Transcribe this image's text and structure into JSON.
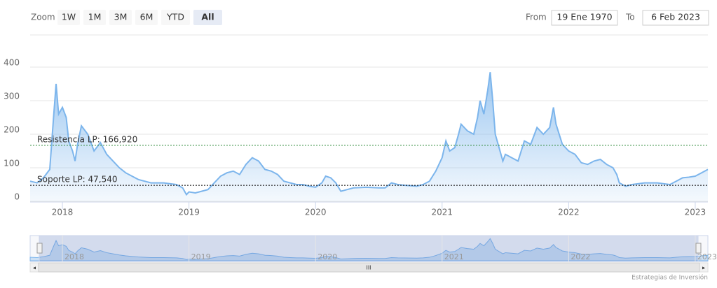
{
  "range_selector": {
    "zoom_label": "Zoom",
    "buttons": [
      "1W",
      "1M",
      "3M",
      "6M",
      "YTD",
      "All"
    ],
    "selected": 5,
    "from_label": "From",
    "from": "19 Ene 1970",
    "to_label": "To",
    "to": "6 Feb 2023"
  },
  "chart_data": {
    "type": "area",
    "color": "#7cb5ec",
    "x": [
      2017.745,
      2017.8,
      2017.85,
      2017.9,
      2017.93,
      2017.95,
      2017.97,
      2018.0,
      2018.03,
      2018.05,
      2018.08,
      2018.1,
      2018.12,
      2018.15,
      2018.2,
      2018.25,
      2018.3,
      2018.35,
      2018.4,
      2018.45,
      2018.5,
      2018.6,
      2018.7,
      2018.8,
      2018.9,
      2018.95,
      2018.98,
      2019.0,
      2019.05,
      2019.1,
      2019.15,
      2019.2,
      2019.25,
      2019.3,
      2019.35,
      2019.4,
      2019.45,
      2019.5,
      2019.55,
      2019.6,
      2019.65,
      2019.7,
      2019.75,
      2019.8,
      2019.85,
      2019.9,
      2019.95,
      2020.0,
      2020.05,
      2020.08,
      2020.12,
      2020.16,
      2020.2,
      2020.25,
      2020.3,
      2020.4,
      2020.5,
      2020.55,
      2020.6,
      2020.65,
      2020.7,
      2020.8,
      2020.85,
      2020.9,
      2020.95,
      2021.0,
      2021.03,
      2021.06,
      2021.1,
      2021.13,
      2021.15,
      2021.2,
      2021.25,
      2021.28,
      2021.3,
      2021.33,
      2021.36,
      2021.38,
      2021.4,
      2021.42,
      2021.45,
      2021.48,
      2021.5,
      2021.55,
      2021.6,
      2021.65,
      2021.7,
      2021.75,
      2021.8,
      2021.85,
      2021.88,
      2021.9,
      2021.95,
      2022.0,
      2022.05,
      2022.1,
      2022.15,
      2022.2,
      2022.25,
      2022.3,
      2022.35,
      2022.38,
      2022.4,
      2022.45,
      2022.5,
      2022.6,
      2022.7,
      2022.8,
      2022.85,
      2022.9,
      2022.95,
      2023.0,
      2023.05,
      2023.1
    ],
    "values": [
      60,
      55,
      70,
      95,
      250,
      350,
      260,
      280,
      250,
      180,
      150,
      120,
      170,
      225,
      200,
      150,
      175,
      140,
      120,
      100,
      85,
      65,
      55,
      55,
      50,
      40,
      20,
      28,
      25,
      30,
      35,
      55,
      75,
      85,
      90,
      80,
      110,
      130,
      120,
      95,
      90,
      80,
      60,
      55,
      50,
      50,
      45,
      42,
      55,
      75,
      70,
      55,
      30,
      35,
      40,
      42,
      40,
      40,
      55,
      50,
      48,
      45,
      50,
      60,
      90,
      130,
      180,
      150,
      160,
      200,
      230,
      210,
      200,
      250,
      300,
      260,
      330,
      385,
      300,
      200,
      160,
      120,
      140,
      130,
      120,
      180,
      170,
      220,
      200,
      220,
      280,
      230,
      170,
      150,
      140,
      115,
      110,
      120,
      125,
      110,
      100,
      80,
      55,
      45,
      50,
      55,
      55,
      50,
      60,
      70,
      72,
      75,
      85,
      95
    ],
    "xlim": [
      2017.745,
      2023.1
    ],
    "xticks": [
      2018,
      2019,
      2020,
      2021,
      2022,
      2023
    ],
    "ylim": [
      0,
      400
    ],
    "yticks": [
      0,
      100,
      200,
      300,
      400
    ],
    "grid": true,
    "plot_lines": [
      {
        "value": 166.92,
        "label": "Resistencia LP: 166,920",
        "color": "#2e8b3a"
      },
      {
        "value": 47.54,
        "label": "Soporte LP: 47,540",
        "color": "#000000"
      }
    ],
    "credits": "Estrategias de Inversión"
  }
}
